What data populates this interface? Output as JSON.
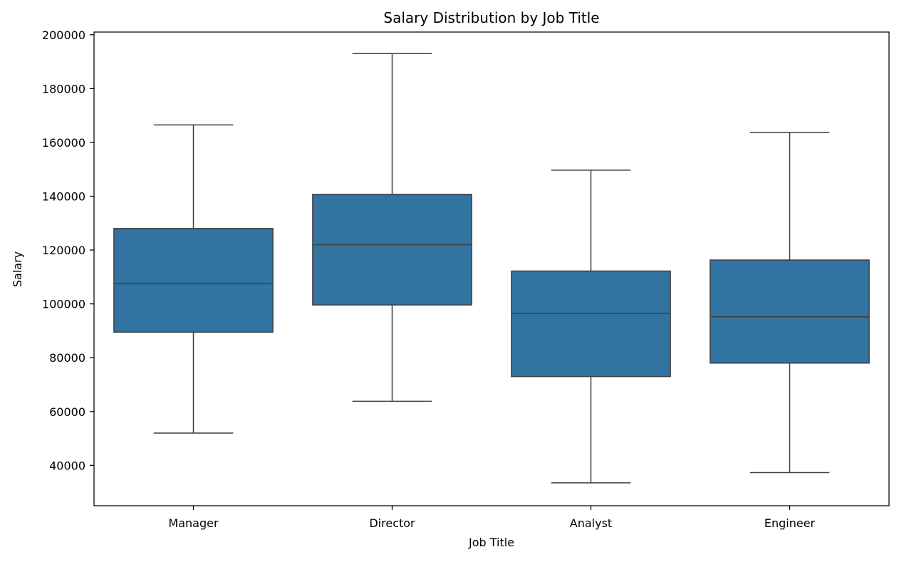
{
  "colors": {
    "box_fill": "#3274a1",
    "line": "#3f3f3f",
    "axis": "#000000",
    "background": "#ffffff"
  },
  "chart_data": {
    "type": "box",
    "title": "Salary Distribution by Job Title",
    "xlabel": "Job Title",
    "ylabel": "Salary",
    "ylim": [
      25000,
      201000
    ],
    "yticks": [
      40000,
      60000,
      80000,
      100000,
      120000,
      140000,
      160000,
      180000,
      200000
    ],
    "grid": false,
    "categories": [
      "Manager",
      "Director",
      "Analyst",
      "Engineer"
    ],
    "boxes": [
      {
        "category": "Manager",
        "whisker_low": 52000,
        "q1": 89500,
        "median": 107500,
        "q3": 128000,
        "whisker_high": 166500
      },
      {
        "category": "Director",
        "whisker_low": 63800,
        "q1": 99600,
        "median": 122000,
        "q3": 140700,
        "whisker_high": 193000
      },
      {
        "category": "Analyst",
        "whisker_low": 33500,
        "q1": 73000,
        "median": 96500,
        "q3": 112200,
        "whisker_high": 149700
      },
      {
        "category": "Engineer",
        "whisker_low": 37300,
        "q1": 78000,
        "median": 95200,
        "q3": 116300,
        "whisker_high": 163700
      }
    ]
  }
}
